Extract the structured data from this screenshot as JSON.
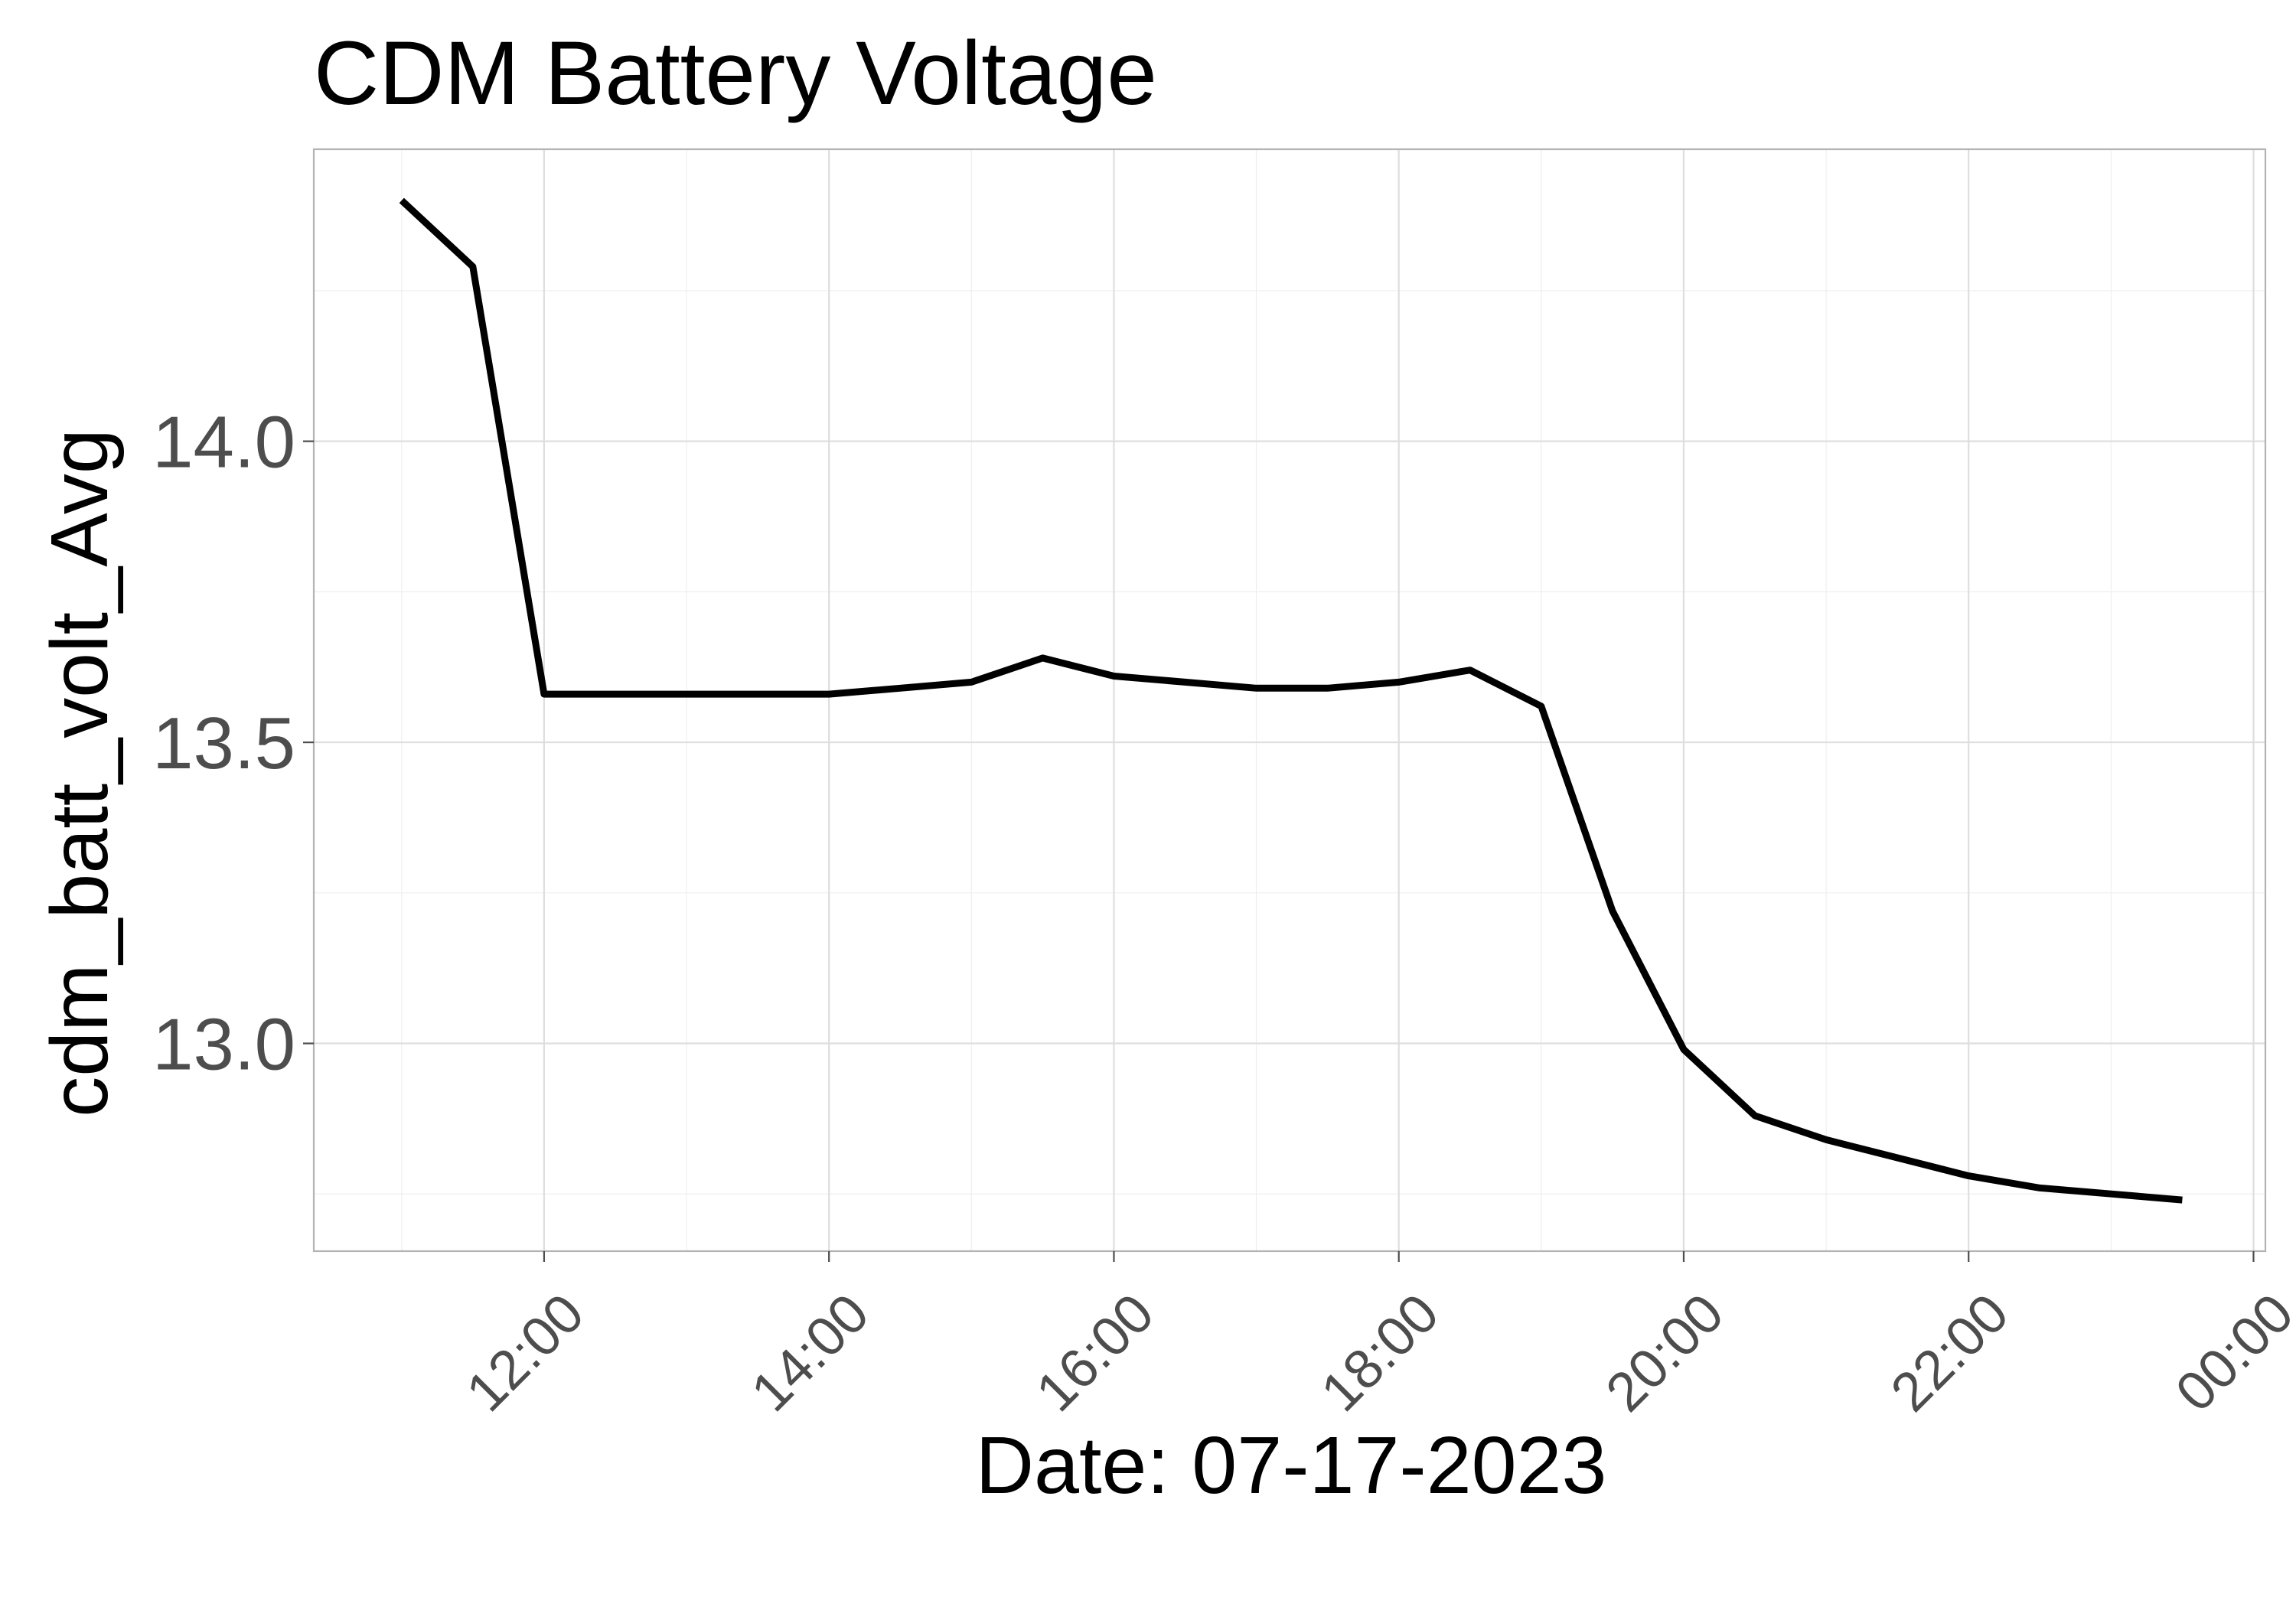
{
  "chart_data": {
    "type": "line",
    "title": "CDM Battery Voltage",
    "xlabel": "Date: 07-17-2023",
    "ylabel": "cdm_batt_volt_Avg",
    "x_unit": "time of day (07-17-2023 to next day)",
    "xlim": [
      "10:23",
      "00:05"
    ],
    "ylim": [
      12.655,
      14.485
    ],
    "x_ticks": [
      "12:00",
      "14:00",
      "16:00",
      "18:00",
      "20:00",
      "22:00",
      "00:00"
    ],
    "y_ticks": [
      "13.0",
      "13.5",
      "14.0"
    ],
    "grid": true,
    "legend": "none",
    "line_color": "#000000",
    "series": [
      {
        "x": [
          "11:00",
          "11:30",
          "12:00",
          "12:30",
          "13:00",
          "13:30",
          "14:00",
          "14:30",
          "15:00",
          "15:30",
          "16:00",
          "16:30",
          "17:00",
          "17:30",
          "18:00",
          "18:30",
          "19:00",
          "19:30",
          "20:00",
          "20:30",
          "21:00",
          "21:30",
          "22:00",
          "22:30",
          "23:00",
          "23:30"
        ],
        "values": [
          14.4,
          14.29,
          13.58,
          13.58,
          13.58,
          13.58,
          13.58,
          13.59,
          13.6,
          13.64,
          13.61,
          13.6,
          13.59,
          13.59,
          13.6,
          13.62,
          13.56,
          13.22,
          12.99,
          12.88,
          12.84,
          12.81,
          12.78,
          12.76,
          12.75,
          12.74
        ]
      }
    ]
  }
}
